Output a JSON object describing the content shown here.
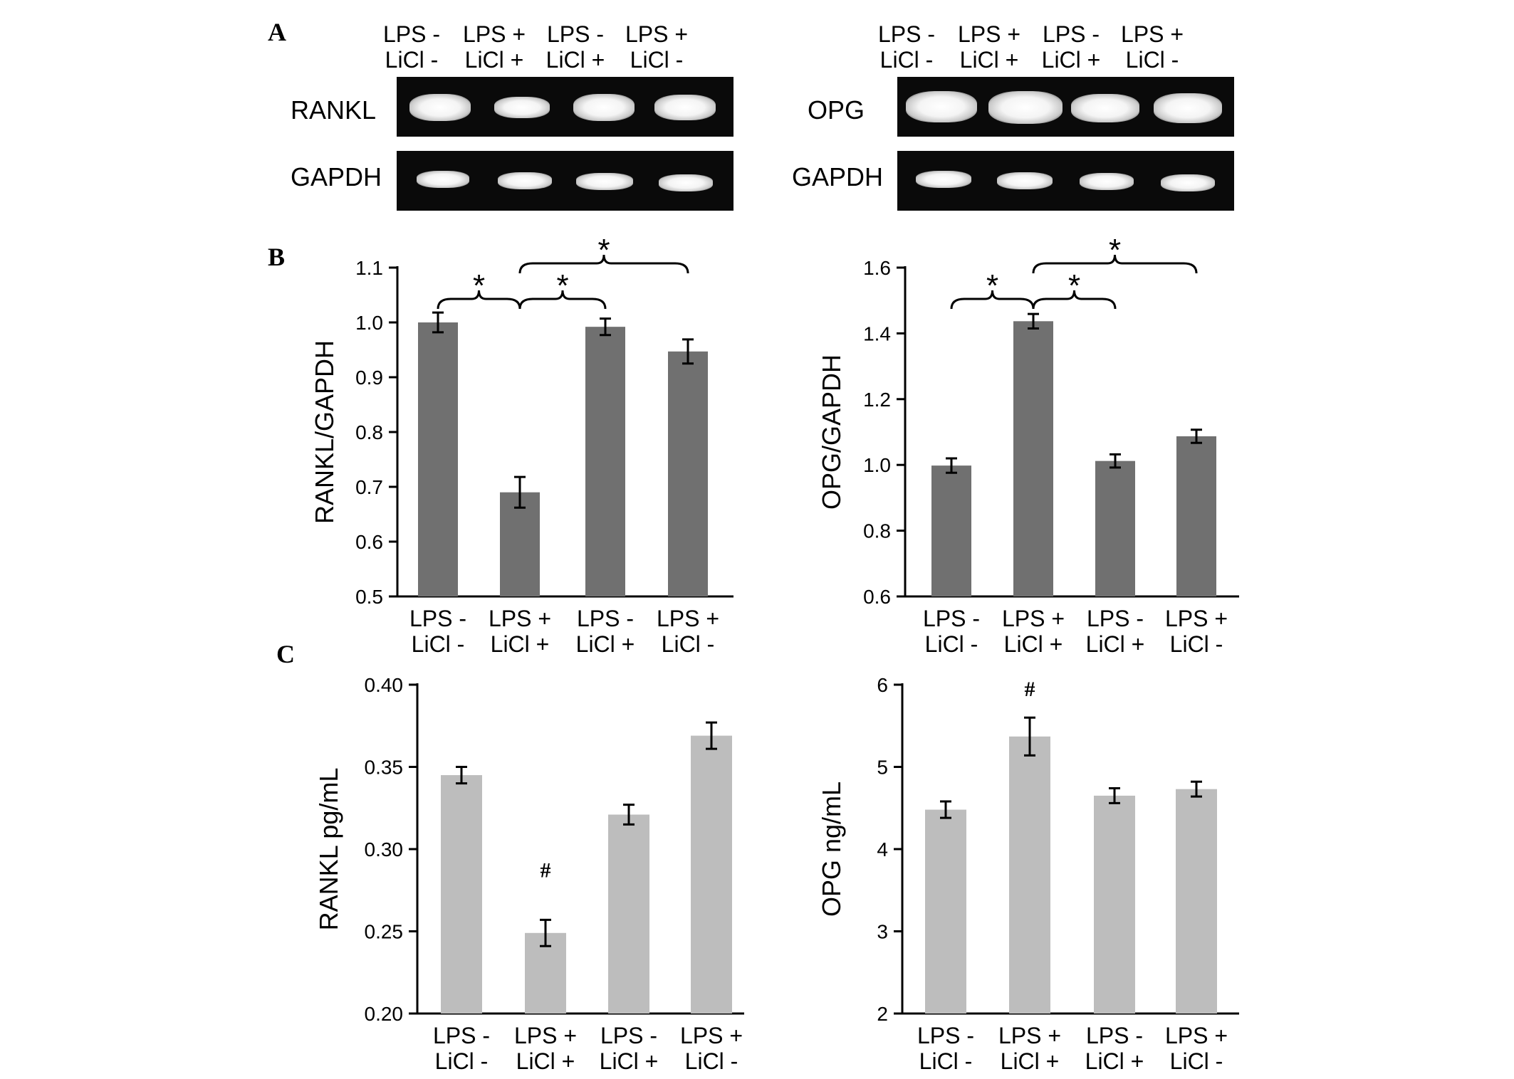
{
  "panels": {
    "a": "A",
    "b": "B",
    "c": "C"
  },
  "conditions": [
    {
      "lps": "LPS -",
      "licl": "LiCl -"
    },
    {
      "lps": "LPS +",
      "licl": "LiCl +"
    },
    {
      "lps": "LPS -",
      "licl": "LiCl +"
    },
    {
      "lps": "LPS +",
      "licl": "LiCl -"
    }
  ],
  "gels": {
    "left": {
      "top_label": "RANKL",
      "bottom_label": "GAPDH"
    },
    "right": {
      "top_label": "OPG",
      "bottom_label": "GAPDH"
    }
  },
  "colors": {
    "bar_dark": "#707070",
    "bar_light": "#bdbdbd",
    "gel_bg": "#0a0a0a"
  },
  "chart_data": [
    {
      "id": "b_left",
      "type": "bar",
      "categories": [
        "LPS - LiCl -",
        "LPS + LiCl +",
        "LPS - LiCl +",
        "LPS + LiCl -"
      ],
      "values": [
        1.0,
        0.69,
        0.992,
        0.947
      ],
      "errors": [
        0.018,
        0.028,
        0.015,
        0.022
      ],
      "ylabel": "RANKL/GAPDH",
      "ylim": [
        0.5,
        1.1
      ],
      "yticks": [
        "0.5",
        "0.6",
        "0.7",
        "0.8",
        "0.9",
        "1.0",
        "1.1"
      ],
      "significance": [
        {
          "from": 0,
          "to": 1,
          "label": "*"
        },
        {
          "from": 1,
          "to": 2,
          "label": "*"
        },
        {
          "from": 1,
          "to": 3,
          "label": "*"
        }
      ]
    },
    {
      "id": "b_right",
      "type": "bar",
      "categories": [
        "LPS - LiCl -",
        "LPS + LiCl +",
        "LPS - LiCl +",
        "LPS + LiCl -"
      ],
      "values": [
        0.998,
        1.437,
        1.012,
        1.087
      ],
      "errors": [
        0.022,
        0.022,
        0.02,
        0.02
      ],
      "ylabel": "OPG/GAPDH",
      "ylim": [
        0.6,
        1.6
      ],
      "yticks": [
        "0.6",
        "0.8",
        "1.0",
        "1.2",
        "1.4",
        "1.6"
      ],
      "significance": [
        {
          "from": 0,
          "to": 1,
          "label": "*"
        },
        {
          "from": 1,
          "to": 2,
          "label": "*"
        },
        {
          "from": 1,
          "to": 3,
          "label": "*"
        }
      ]
    },
    {
      "id": "c_left",
      "type": "bar",
      "categories": [
        "LPS - LiCl -",
        "LPS + LiCl +",
        "LPS - LiCl +",
        "LPS + LiCl -"
      ],
      "values": [
        0.345,
        0.249,
        0.321,
        0.369
      ],
      "errors": [
        0.005,
        0.008,
        0.006,
        0.008
      ],
      "ylabel": "RANKL  pg/mL",
      "ylim": [
        0.2,
        0.4
      ],
      "yticks": [
        "0.20",
        "0.25",
        "0.30",
        "0.35",
        "0.40"
      ],
      "markers": [
        {
          "index": 1,
          "label": "#"
        }
      ]
    },
    {
      "id": "c_right",
      "type": "bar",
      "categories": [
        "LPS - LiCl -",
        "LPS + LiCl +",
        "LPS - LiCl +",
        "LPS + LiCl -"
      ],
      "values": [
        4.48,
        5.37,
        4.65,
        4.73
      ],
      "errors": [
        0.1,
        0.23,
        0.09,
        0.09
      ],
      "ylabel": "OPG  ng/mL",
      "ylim": [
        2,
        6
      ],
      "yticks": [
        "2",
        "3",
        "4",
        "5",
        "6"
      ],
      "markers": [
        {
          "index": 1,
          "label": "#"
        }
      ]
    }
  ]
}
